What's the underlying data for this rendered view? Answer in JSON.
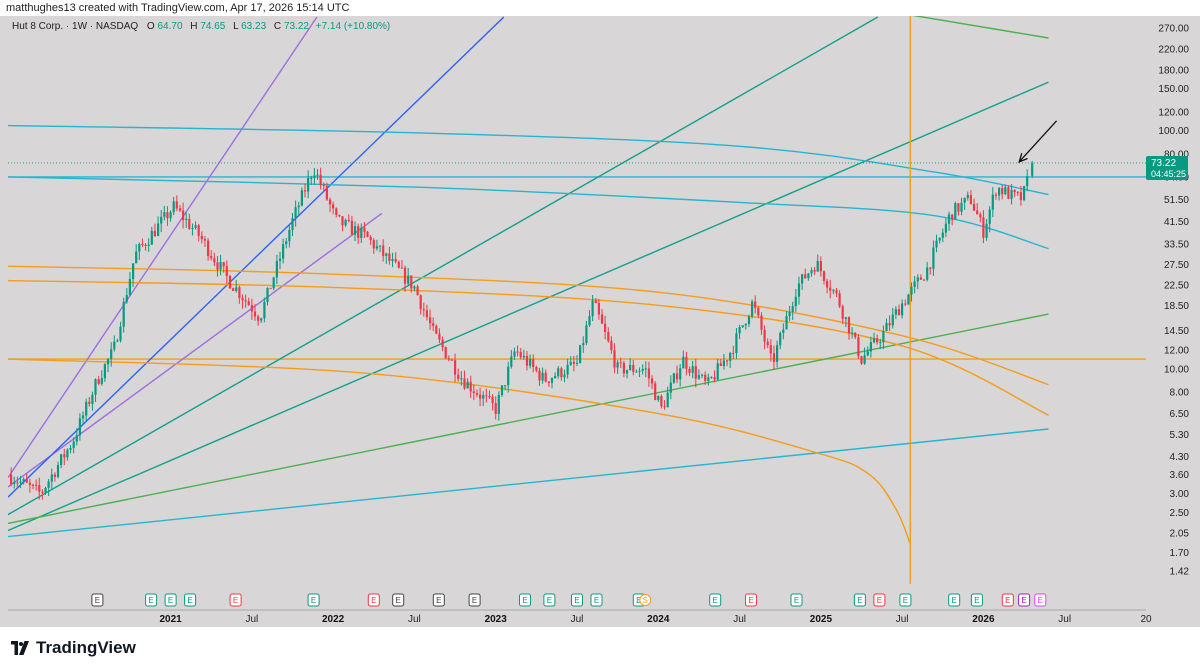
{
  "header": {
    "attribution": "matthughes13 created with TradingView.com, Apr 17, 2026 15:14 UTC"
  },
  "legend": {
    "symbol": "Hut 8 Corp. · 1W · NASDAQ",
    "o_label": "O",
    "o_value": "64.70",
    "h_label": "H",
    "h_value": "74.65",
    "l_label": "L",
    "l_value": "63.23",
    "c_label": "C",
    "c_value": "73.22",
    "change": "+7.14 (+10.80%)"
  },
  "price_label": {
    "price": "73.22",
    "countdown": "04:45:25",
    "color": "#089981"
  },
  "brand": {
    "name": "TradingView"
  },
  "colors": {
    "background": "#d8d6d6",
    "up": "#089981",
    "down": "#f23645",
    "cyan": "#26b5d1",
    "orange": "#f59c1a",
    "teal": "#12a08a",
    "blue": "#2962ff",
    "purple": "#9c6fe0",
    "green": "#4caf50"
  },
  "chart_data": {
    "type": "candlestick",
    "symbol": "Hut 8 Corp.",
    "interval": "1W",
    "exchange": "NASDAQ",
    "y_scale": "log",
    "ylim": [
      1.42,
      300
    ],
    "y_ticks": [
      "270.00",
      "220.00",
      "180.00",
      "150.00",
      "120.00",
      "100.00",
      "80.00",
      "64.00",
      "51.50",
      "41.50",
      "33.50",
      "27.50",
      "22.50",
      "18.50",
      "14.50",
      "12.00",
      "10.00",
      "8.00",
      "6.50",
      "5.30",
      "4.30",
      "3.60",
      "3.00",
      "2.50",
      "2.05",
      "1.70",
      "1.42"
    ],
    "x_ticks": [
      {
        "label": "2021",
        "t": 2021.0,
        "bold": true
      },
      {
        "label": "Jul",
        "t": 2021.5,
        "bold": false
      },
      {
        "label": "2022",
        "t": 2022.0,
        "bold": true
      },
      {
        "label": "Jul",
        "t": 2022.5,
        "bold": false
      },
      {
        "label": "2023",
        "t": 2023.0,
        "bold": true
      },
      {
        "label": "Jul",
        "t": 2023.5,
        "bold": false
      },
      {
        "label": "2024",
        "t": 2024.0,
        "bold": true
      },
      {
        "label": "Jul",
        "t": 2024.5,
        "bold": false
      },
      {
        "label": "2025",
        "t": 2025.0,
        "bold": true
      },
      {
        "label": "Jul",
        "t": 2025.5,
        "bold": false
      },
      {
        "label": "2026",
        "t": 2026.0,
        "bold": true
      },
      {
        "label": "Jul",
        "t": 2026.5,
        "bold": false
      },
      {
        "label": "20",
        "t": 2027.0,
        "bold": false
      }
    ],
    "anchors": [
      [
        2020.0,
        3.6
      ],
      [
        2020.2,
        3.0
      ],
      [
        2020.4,
        5.0
      ],
      [
        2020.55,
        9.0
      ],
      [
        2020.65,
        12.0
      ],
      [
        2020.78,
        30.0
      ],
      [
        2020.9,
        38.0
      ],
      [
        2021.02,
        48.0
      ],
      [
        2021.18,
        36.0
      ],
      [
        2021.35,
        24.0
      ],
      [
        2021.55,
        16.5
      ],
      [
        2021.75,
        42.0
      ],
      [
        2021.88,
        70.0
      ],
      [
        2022.02,
        42.0
      ],
      [
        2022.2,
        36.0
      ],
      [
        2022.4,
        26.0
      ],
      [
        2022.5,
        22.0
      ],
      [
        2022.62,
        14.0
      ],
      [
        2022.8,
        9.0
      ],
      [
        2023.0,
        6.8
      ],
      [
        2023.12,
        12.0
      ],
      [
        2023.3,
        9.0
      ],
      [
        2023.5,
        10.5
      ],
      [
        2023.6,
        19.0
      ],
      [
        2023.75,
        10.0
      ],
      [
        2023.92,
        10.0
      ],
      [
        2024.02,
        6.8
      ],
      [
        2024.15,
        11.0
      ],
      [
        2024.3,
        8.5
      ],
      [
        2024.45,
        12.0
      ],
      [
        2024.58,
        19.0
      ],
      [
        2024.7,
        10.5
      ],
      [
        2024.85,
        22.0
      ],
      [
        2024.97,
        28.0
      ],
      [
        2025.1,
        20.0
      ],
      [
        2025.25,
        11.0
      ],
      [
        2025.38,
        14.0
      ],
      [
        2025.48,
        18.0
      ],
      [
        2025.65,
        26.0
      ],
      [
        2025.8,
        45.0
      ],
      [
        2025.92,
        52.0
      ],
      [
        2026.0,
        38.0
      ],
      [
        2026.08,
        58.0
      ],
      [
        2026.18,
        53.0
      ],
      [
        2026.24,
        52.0
      ],
      [
        2026.3,
        73.22
      ]
    ],
    "last_candle": {
      "o": 64.7,
      "h": 74.65,
      "l": 63.23,
      "c": 73.22
    },
    "trendlines": [
      {
        "kind": "line",
        "color": "#26b5d1",
        "points": [
          [
            2020.0,
            64.0
          ],
          [
            2027.0,
            64.0
          ]
        ]
      },
      {
        "kind": "line",
        "color": "#f59c1a",
        "points": [
          [
            2020.0,
            11.0
          ],
          [
            2027.0,
            11.0
          ]
        ]
      },
      {
        "kind": "line",
        "color": "#9c6fe0",
        "points": [
          [
            2020.0,
            3.5
          ],
          [
            2021.9,
            300.0
          ]
        ]
      },
      {
        "kind": "line",
        "color": "#9c6fe0",
        "points": [
          [
            2020.0,
            3.2
          ],
          [
            2022.3,
            45.0
          ]
        ]
      },
      {
        "kind": "line",
        "color": "#2962ff",
        "points": [
          [
            2020.0,
            2.9
          ],
          [
            2023.05,
            300.0
          ]
        ]
      },
      {
        "kind": "line",
        "color": "#12a08a",
        "points": [
          [
            2020.0,
            2.45
          ],
          [
            2025.35,
            300.0
          ]
        ]
      },
      {
        "kind": "line",
        "color": "#12a08a",
        "points": [
          [
            2020.0,
            2.1
          ],
          [
            2026.4,
            160.0
          ]
        ]
      },
      {
        "kind": "line",
        "color": "#4caf50",
        "points": [
          [
            2020.0,
            2.25
          ],
          [
            2026.4,
            17.0
          ]
        ]
      },
      {
        "kind": "line",
        "color": "#26b5d1",
        "points": [
          [
            2020.0,
            1.98
          ],
          [
            2026.4,
            5.6
          ]
        ]
      },
      {
        "kind": "line",
        "color": "#4caf50",
        "points": [
          [
            2025.5,
            310.0
          ],
          [
            2026.4,
            245.0
          ]
        ]
      },
      {
        "kind": "arc",
        "color": "#26b5d1",
        "points": [
          [
            2020.0,
            105.0
          ],
          [
            2022.5,
            98.0
          ],
          [
            2024.5,
            86.0
          ],
          [
            2025.7,
            67.0
          ],
          [
            2026.4,
            54.0
          ]
        ]
      },
      {
        "kind": "arc",
        "color": "#26b5d1",
        "points": [
          [
            2020.0,
            64.0
          ],
          [
            2022.5,
            58.0
          ],
          [
            2024.5,
            50.0
          ],
          [
            2025.7,
            44.0
          ],
          [
            2026.4,
            32.0
          ]
        ]
      },
      {
        "kind": "arc",
        "color": "#f59c1a",
        "points": [
          [
            2020.0,
            27.0
          ],
          [
            2022.0,
            25.0
          ],
          [
            2024.0,
            21.0
          ],
          [
            2025.5,
            13.8
          ],
          [
            2026.4,
            8.6
          ]
        ]
      },
      {
        "kind": "arc",
        "color": "#f59c1a",
        "points": [
          [
            2020.0,
            23.5
          ],
          [
            2022.0,
            22.0
          ],
          [
            2024.0,
            18.5
          ],
          [
            2025.5,
            12.5
          ],
          [
            2026.4,
            6.4
          ]
        ]
      },
      {
        "kind": "arc",
        "color": "#f59c1a",
        "points": [
          [
            2020.0,
            11.0
          ],
          [
            2022.2,
            9.6
          ],
          [
            2024.0,
            6.5
          ],
          [
            2025.0,
            4.4
          ],
          [
            2025.3,
            3.6
          ],
          [
            2025.46,
            2.6
          ],
          [
            2025.55,
            1.85
          ]
        ]
      }
    ],
    "vertical_line": {
      "t": 2025.55,
      "color": "#f59c1a"
    },
    "dotted_price": 73.22,
    "events": [
      {
        "t": 2020.55,
        "type": "E",
        "color": "#444444"
      },
      {
        "t": 2020.88,
        "type": "E",
        "color": "#089981"
      },
      {
        "t": 2021.0,
        "type": "E",
        "color": "#089981"
      },
      {
        "t": 2021.12,
        "type": "E",
        "color": "#089981"
      },
      {
        "t": 2021.4,
        "type": "E",
        "color": "#f23645"
      },
      {
        "t": 2021.88,
        "type": "E",
        "color": "#089981"
      },
      {
        "t": 2022.25,
        "type": "E",
        "color": "#f23645"
      },
      {
        "t": 2022.4,
        "type": "E",
        "color": "#444444"
      },
      {
        "t": 2022.65,
        "type": "E",
        "color": "#444444"
      },
      {
        "t": 2022.87,
        "type": "E",
        "color": "#444444"
      },
      {
        "t": 2023.18,
        "type": "E",
        "color": "#089981"
      },
      {
        "t": 2023.33,
        "type": "E",
        "color": "#089981"
      },
      {
        "t": 2023.5,
        "type": "E",
        "color": "#089981"
      },
      {
        "t": 2023.62,
        "type": "E",
        "color": "#089981"
      },
      {
        "t": 2023.88,
        "type": "E",
        "color": "#089981"
      },
      {
        "t": 2023.92,
        "type": "S",
        "color": "#f59c1a"
      },
      {
        "t": 2024.35,
        "type": "E",
        "color": "#089981"
      },
      {
        "t": 2024.57,
        "type": "E",
        "color": "#f23645"
      },
      {
        "t": 2024.85,
        "type": "E",
        "color": "#089981"
      },
      {
        "t": 2025.24,
        "type": "E",
        "color": "#089981"
      },
      {
        "t": 2025.36,
        "type": "E",
        "color": "#f23645"
      },
      {
        "t": 2025.52,
        "type": "E",
        "color": "#089981"
      },
      {
        "t": 2025.82,
        "type": "E",
        "color": "#089981"
      },
      {
        "t": 2025.96,
        "type": "E",
        "color": "#089981"
      },
      {
        "t": 2026.15,
        "type": "E",
        "color": "#f23645"
      },
      {
        "t": 2026.25,
        "type": "E",
        "color": "#9c27b0"
      },
      {
        "t": 2026.35,
        "type": "E",
        "color": "#e040fb"
      }
    ],
    "annotation": {
      "type": "arrow",
      "color": "#111111",
      "from": [
        2026.45,
        110.0
      ],
      "to": [
        2026.22,
        74.0
      ]
    }
  }
}
